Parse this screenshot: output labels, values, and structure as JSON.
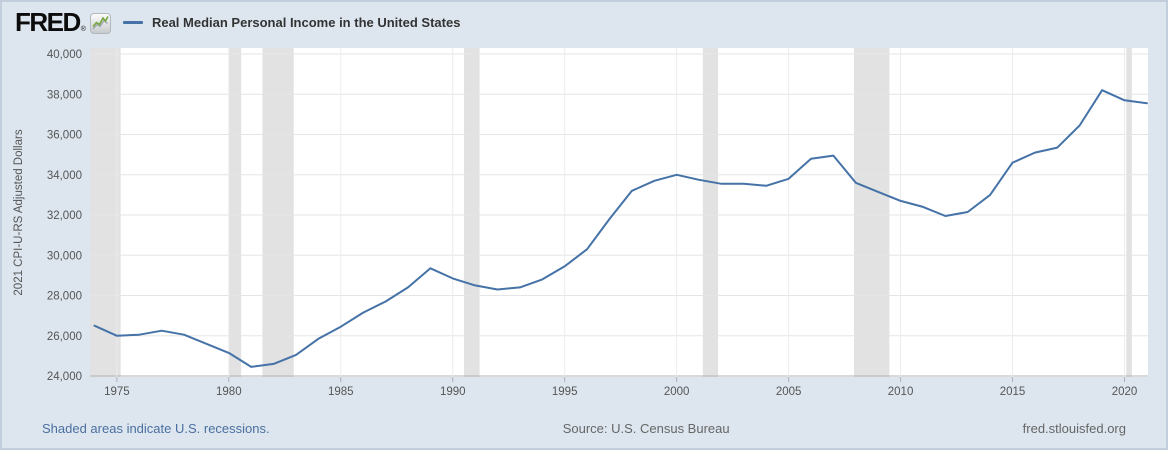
{
  "header": {
    "logo_text": "FRED",
    "logo_registered": "®",
    "legend": {
      "series_label": "Real Median Personal Income in the United States",
      "series_color": "#4572a7"
    }
  },
  "chart_data": {
    "type": "line",
    "title": "Real Median Personal Income in the United States",
    "xlabel": "",
    "ylabel": "2021 CPI-U-RS Adjusted Dollars",
    "x": [
      1974,
      1975,
      1976,
      1977,
      1978,
      1979,
      1980,
      1981,
      1982,
      1983,
      1984,
      1985,
      1986,
      1987,
      1988,
      1989,
      1990,
      1991,
      1992,
      1993,
      1994,
      1995,
      1996,
      1997,
      1998,
      1999,
      2000,
      2001,
      2002,
      2003,
      2004,
      2005,
      2006,
      2007,
      2008,
      2009,
      2010,
      2011,
      2012,
      2013,
      2014,
      2015,
      2016,
      2017,
      2018,
      2019,
      2020,
      2021
    ],
    "values": [
      26500,
      26000,
      26050,
      26250,
      26050,
      25600,
      25150,
      24450,
      24600,
      25050,
      25850,
      26450,
      27150,
      27700,
      28400,
      29350,
      28850,
      28500,
      28300,
      28400,
      28800,
      29450,
      30300,
      31800,
      33200,
      33700,
      34000,
      33750,
      33550,
      33550,
      33450,
      33800,
      34800,
      34950,
      33600,
      33150,
      32700,
      32400,
      31950,
      32150,
      33000,
      34600,
      35100,
      35350,
      36450,
      38200,
      37700,
      37550
    ],
    "xlim": [
      1973.8,
      2021.05
    ],
    "ylim": [
      24000,
      40000
    ],
    "x_ticks": [
      1975,
      1980,
      1985,
      1990,
      1995,
      2000,
      2005,
      2010,
      2015,
      2020
    ],
    "y_ticks": [
      24000,
      26000,
      28000,
      30000,
      32000,
      34000,
      36000,
      38000,
      40000
    ],
    "y_tick_labels": [
      "24,000",
      "26,000",
      "28,000",
      "30,000",
      "32,000",
      "34,000",
      "36,000",
      "38,000",
      "40,000"
    ],
    "grid": true,
    "legend_position": "top-left",
    "line_color": "#4572a7",
    "plot_bg_color": "#ffffff",
    "page_bg_color": "#dde6ef",
    "recession_color": "#e2e2e2",
    "recessions": [
      [
        1973.8,
        1975.17
      ],
      [
        1980.0,
        1980.55
      ],
      [
        1981.5,
        1982.9
      ],
      [
        1990.5,
        1991.2
      ],
      [
        2001.17,
        2001.85
      ],
      [
        2007.92,
        2009.5
      ],
      [
        2020.08,
        2020.33
      ]
    ]
  },
  "footer": {
    "recession_note": "Shaded areas indicate U.S. recessions.",
    "source": "Source: U.S. Census Bureau",
    "site": "fred.stlouisfed.org"
  }
}
